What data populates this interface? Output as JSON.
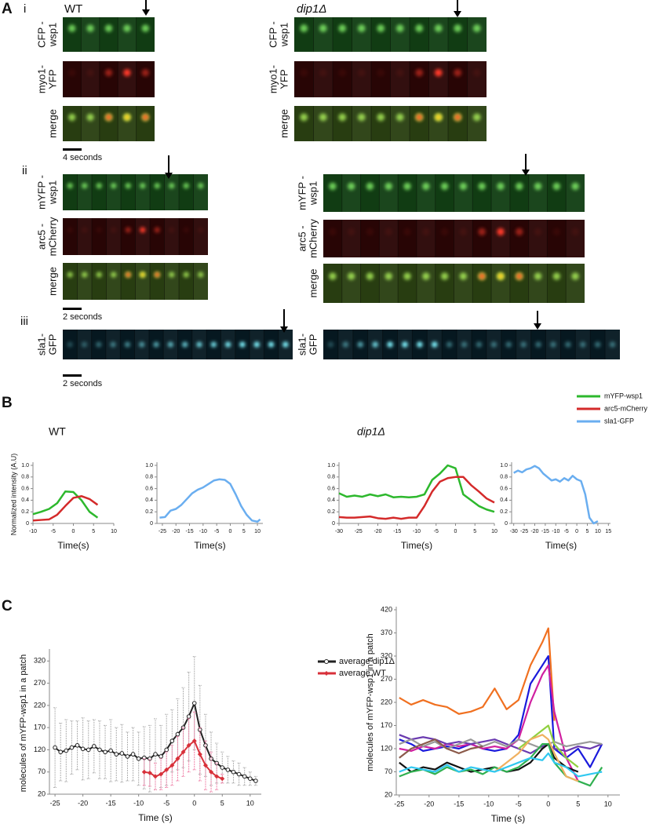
{
  "panel_a": {
    "label": "A",
    "i": "i",
    "ii": "ii",
    "iii": "iii",
    "wt": "WT",
    "dip1": "dip1Δ",
    "i_wt": [
      [
        "CFP -",
        "wsp1"
      ],
      [
        "myo1-",
        "YFP"
      ],
      [
        "merge"
      ]
    ],
    "i_dip1": [
      [
        "CFP -",
        "wsp1"
      ],
      [
        "myo1-",
        "YFP"
      ],
      [
        "merge"
      ]
    ],
    "ii_wt": [
      [
        "mYFP -",
        "wsp1"
      ],
      [
        "arc5 -",
        "mCherry"
      ],
      [
        "merge"
      ]
    ],
    "ii_dip1": [
      [
        "mYFP -",
        "wsp1"
      ],
      [
        "arc5 -",
        "mCherry"
      ],
      [
        "merge"
      ]
    ],
    "iii_wt": [
      [
        "sla1-",
        "GFP"
      ]
    ],
    "iii_dip1": [
      [
        "sla1-",
        "GFP"
      ]
    ],
    "scale_i": "4 seconds",
    "scale_ii": "2 seconds",
    "scale_iii": "2 seconds"
  },
  "panel_b": {
    "label": "B",
    "wt": "WT",
    "dip1": "dip1Δ",
    "legend": [
      {
        "name": "mYFP-wsp1",
        "color": "#2db82d"
      },
      {
        "name": "arc5-mCherry",
        "color": "#d42a2a"
      },
      {
        "name": "sla1-GFP",
        "color": "#6aaef0"
      }
    ]
  },
  "panel_c": {
    "label": "C"
  },
  "chart_data": [
    {
      "type": "line",
      "y_label": "Normalized intensity (A.U)",
      "x_label": "Time(s)",
      "x": [
        -10,
        -8,
        -6,
        -4,
        -2,
        0,
        2,
        4,
        6
      ],
      "series": [
        {
          "color": "#2db82d",
          "values": [
            0.16,
            0.2,
            0.25,
            0.35,
            0.55,
            0.54,
            0.4,
            0.2,
            0.1
          ]
        },
        {
          "color": "#d42a2a",
          "values": [
            0.05,
            0.06,
            0.07,
            0.15,
            0.3,
            0.44,
            0.47,
            0.42,
            0.32
          ]
        }
      ],
      "xlim": [
        -10,
        10
      ],
      "xticks": [
        -10,
        -5,
        0,
        5,
        10
      ],
      "ylim": [
        0,
        1
      ],
      "yticks": [
        0,
        0.2,
        0.4,
        0.6,
        0.8,
        {
          "value": 1,
          "label": "1.0"
        }
      ]
    },
    {
      "type": "line",
      "x_label": "Time(s)",
      "x": [
        -26,
        -24,
        -22,
        -20,
        -18,
        -16,
        -14,
        -12,
        -10,
        -8,
        -6,
        -4,
        -2,
        0,
        2,
        4,
        6,
        8,
        10,
        11
      ],
      "series": [
        {
          "color": "#6aaef0",
          "values": [
            0.1,
            0.11,
            0.22,
            0.25,
            0.32,
            0.42,
            0.52,
            0.58,
            0.62,
            0.68,
            0.74,
            0.76,
            0.75,
            0.68,
            0.5,
            0.3,
            0.15,
            0.05,
            0.03,
            0.07
          ]
        }
      ],
      "xlim": [
        -27,
        12
      ],
      "xticks": [
        -25,
        -20,
        -15,
        -10,
        -5,
        0,
        5,
        10
      ],
      "ylim": [
        0,
        1
      ],
      "yticks": [
        0,
        0.2,
        0.4,
        0.6,
        0.8,
        {
          "value": 1,
          "label": "1.0"
        }
      ]
    },
    {
      "type": "line",
      "x_label": "Time(s)",
      "x": [
        -30,
        -28,
        -26,
        -24,
        -22,
        -20,
        -18,
        -16,
        -14,
        -12,
        -10,
        -8,
        -6,
        -4,
        -2,
        0,
        2,
        4,
        6,
        8,
        10
      ],
      "series": [
        {
          "color": "#2db82d",
          "values": [
            0.52,
            0.46,
            0.48,
            0.46,
            0.5,
            0.47,
            0.5,
            0.45,
            0.46,
            0.45,
            0.46,
            0.5,
            0.75,
            0.86,
            1.0,
            0.95,
            0.5,
            0.4,
            0.3,
            0.24,
            0.2
          ]
        },
        {
          "color": "#d42a2a",
          "values": [
            0.11,
            0.1,
            0.1,
            0.11,
            0.12,
            0.09,
            0.08,
            0.1,
            0.08,
            0.1,
            0.1,
            0.3,
            0.55,
            0.72,
            0.78,
            0.8,
            0.8,
            0.66,
            0.55,
            0.43,
            0.36
          ]
        }
      ],
      "xlim": [
        -30,
        10
      ],
      "xticks": [
        -30,
        -25,
        -20,
        -15,
        -10,
        -5,
        0,
        5,
        10
      ],
      "ylim": [
        0,
        1
      ],
      "yticks": [
        0,
        0.2,
        0.4,
        0.6,
        0.8,
        {
          "value": 1,
          "label": "1.0"
        }
      ]
    },
    {
      "type": "line",
      "x_label": "Time(s)",
      "x": [
        -30,
        -28,
        -26,
        -24,
        -22,
        -20,
        -18,
        -16,
        -14,
        -12,
        -10,
        -8,
        -6,
        -4,
        -2,
        0,
        2,
        4,
        6,
        8,
        10
      ],
      "series": [
        {
          "color": "#6aaef0",
          "values": [
            0.87,
            0.91,
            0.88,
            0.93,
            0.95,
            0.99,
            0.95,
            0.86,
            0.8,
            0.74,
            0.76,
            0.72,
            0.78,
            0.74,
            0.82,
            0.76,
            0.73,
            0.5,
            0.1,
            0.0,
            0.04
          ]
        }
      ],
      "xlim": [
        -31,
        16
      ],
      "xticks": [
        -30,
        -25,
        -20,
        -15,
        -10,
        -5,
        0,
        5,
        10,
        15
      ],
      "ylim": [
        0,
        1
      ],
      "yticks": [
        0,
        0.2,
        0.4,
        0.6,
        0.8,
        {
          "value": 1,
          "label": "1.0"
        }
      ]
    },
    {
      "type": "line",
      "y_label": "molecules of mYFP-wsp1 in a patch",
      "x_label": "Time (s)",
      "series": [
        {
          "name": "average dip1Δ",
          "color": "#222222",
          "error_color": "#b0b0b0",
          "marker": "open-circle",
          "x": [
            -25,
            -24,
            -23,
            -22,
            -21,
            -20,
            -19,
            -18,
            -17,
            -16,
            -15,
            -14,
            -13,
            -12,
            -11,
            -10,
            -9,
            -8,
            -7,
            -6,
            -5,
            -4,
            -3,
            -2,
            -1,
            0,
            1,
            2,
            3,
            4,
            5,
            6,
            7,
            8,
            9,
            10,
            11
          ],
          "values": [
            125,
            115,
            118,
            125,
            130,
            122,
            120,
            128,
            120,
            115,
            118,
            110,
            112,
            105,
            110,
            100,
            102,
            100,
            110,
            105,
            120,
            140,
            155,
            170,
            195,
            225,
            165,
            130,
            100,
            90,
            80,
            75,
            70,
            65,
            60,
            55,
            50
          ],
          "errors": [
            90,
            65,
            70,
            60,
            55,
            70,
            65,
            60,
            65,
            60,
            70,
            60,
            65,
            55,
            60,
            60,
            70,
            75,
            80,
            70,
            80,
            70,
            80,
            90,
            100,
            105,
            100,
            70,
            60,
            45,
            35,
            30,
            25,
            25,
            20,
            15,
            10
          ]
        },
        {
          "name": "average WT",
          "color": "#d8303a",
          "error_color": "#f080a8",
          "marker": "diamond",
          "x": [
            -9,
            -8,
            -7,
            -6,
            -5,
            -4,
            -3,
            -2,
            -1,
            0,
            1,
            2,
            3,
            4,
            5
          ],
          "values": [
            70,
            68,
            60,
            65,
            75,
            85,
            100,
            115,
            130,
            140,
            110,
            85,
            70,
            60,
            55
          ],
          "errors": [
            30,
            30,
            30,
            35,
            40,
            45,
            50,
            55,
            60,
            65,
            60,
            55,
            45,
            30,
            10
          ]
        }
      ],
      "xlim": [
        -26,
        12
      ],
      "xticks": [
        -25,
        -20,
        -15,
        -10,
        -5,
        0,
        5,
        10
      ],
      "ylim": [
        20,
        340
      ],
      "yticks": [
        20,
        70,
        120,
        170,
        220,
        270,
        320
      ]
    },
    {
      "type": "line",
      "y_label": "molecules of mYFP-wsp1 in a patch",
      "x_label": "Time (s)",
      "x": [
        -25,
        -23,
        -21,
        -19,
        -17,
        -15,
        -13,
        -11,
        -9,
        -7,
        -5,
        -3,
        -1,
        0,
        1,
        3,
        5,
        7,
        9,
        11
      ],
      "series": [
        {
          "color": "#f07020",
          "values": [
            230,
            215,
            225,
            215,
            210,
            195,
            200,
            210,
            250,
            205,
            225,
            300,
            350,
            380,
            180,
            null,
            null,
            null,
            null,
            null
          ]
        },
        {
          "color": "#1a1adc",
          "values": [
            140,
            130,
            115,
            120,
            125,
            120,
            130,
            120,
            115,
            120,
            150,
            260,
            300,
            320,
            120,
            100,
            120,
            80,
            130,
            null
          ]
        },
        {
          "color": "#d020a0",
          "values": [
            120,
            115,
            125,
            120,
            130,
            125,
            130,
            120,
            125,
            120,
            140,
            220,
            280,
            300,
            200,
            100,
            50,
            null,
            null,
            null
          ]
        },
        {
          "color": "#6a3ab0",
          "values": [
            150,
            140,
            145,
            140,
            130,
            135,
            130,
            135,
            140,
            130,
            120,
            110,
            125,
            130,
            120,
            115,
            125,
            120,
            130,
            null
          ]
        },
        {
          "color": "#999999",
          "values": [
            130,
            140,
            125,
            135,
            120,
            130,
            140,
            125,
            135,
            125,
            140,
            130,
            120,
            130,
            135,
            125,
            130,
            135,
            130,
            null
          ]
        },
        {
          "color": "#8b5a4a",
          "values": [
            100,
            120,
            130,
            140,
            120,
            110,
            120,
            125,
            null,
            null,
            null,
            null,
            null,
            null,
            null,
            null,
            null,
            null,
            null,
            null
          ]
        },
        {
          "color": "#111111",
          "values": [
            90,
            70,
            80,
            75,
            90,
            80,
            70,
            75,
            80,
            70,
            75,
            90,
            120,
            130,
            100,
            80,
            70,
            null,
            null,
            null
          ]
        },
        {
          "color": "#30b050",
          "values": [
            60,
            70,
            75,
            65,
            80,
            70,
            75,
            65,
            80,
            70,
            80,
            100,
            130,
            130,
            90,
            60,
            50,
            40,
            80,
            null
          ]
        },
        {
          "color": "#90d040",
          "values": [
            null,
            null,
            null,
            null,
            null,
            null,
            null,
            null,
            null,
            null,
            120,
            140,
            160,
            170,
            130,
            100,
            80,
            null,
            null,
            null
          ]
        },
        {
          "color": "#f0b060",
          "values": [
            null,
            null,
            null,
            null,
            null,
            null,
            null,
            null,
            70,
            90,
            110,
            140,
            150,
            140,
            110,
            60,
            50,
            null,
            null,
            null
          ]
        },
        {
          "color": "#30c8f0",
          "values": [
            70,
            80,
            75,
            70,
            85,
            70,
            80,
            75,
            70,
            80,
            90,
            100,
            95,
            110,
            90,
            80,
            60,
            65,
            70,
            null
          ]
        }
      ],
      "xlim": [
        -25.5,
        12
      ],
      "xticks": [
        -25,
        -20,
        -15,
        -10,
        -5,
        0,
        5,
        10
      ],
      "ylim": [
        20,
        420
      ],
      "yticks": [
        20,
        70,
        120,
        170,
        220,
        270,
        320,
        370,
        420
      ]
    }
  ]
}
